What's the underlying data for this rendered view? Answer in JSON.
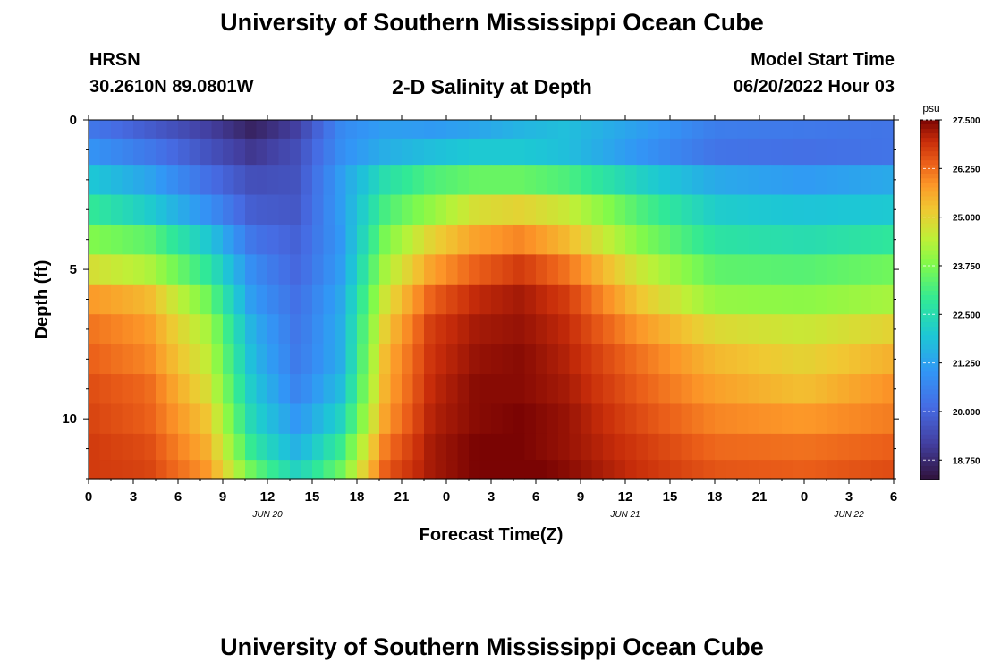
{
  "header": {
    "title": "University of Southern Mississippi Ocean Cube",
    "station_id": "HRSN",
    "coords": "30.2610N  89.0801W",
    "chart_title": "2-D Salinity at Depth",
    "start_label": "Model Start Time",
    "start_value": "06/20/2022 Hour 03"
  },
  "footer": {
    "title": "University of Southern Mississippi Ocean Cube"
  },
  "chart_data": {
    "type": "heatmap",
    "title": "2-D Salinity at Depth",
    "xlabel": "Forecast Time(Z)",
    "ylabel": "Depth (ft)",
    "x_tick_labels": [
      "0",
      "3",
      "6",
      "9",
      "12",
      "15",
      "18",
      "21",
      "0",
      "3",
      "6",
      "9",
      "12",
      "15",
      "18",
      "21",
      "0",
      "3",
      "6"
    ],
    "date_labels": [
      {
        "label": "JUN 20",
        "tick_index": 4
      },
      {
        "label": "JUN 21",
        "tick_index": 12
      },
      {
        "label": "JUN 22",
        "tick_index": 17
      }
    ],
    "x_range_hours": [
      0,
      54
    ],
    "y_tick_labels": [
      "0",
      "5",
      "10"
    ],
    "y_tick_values": [
      0,
      5,
      10
    ],
    "y_range_ft": [
      0,
      12
    ],
    "depth_layers_ft": [
      0.25,
      1.0,
      2.0,
      3.0,
      4.0,
      5.0,
      6.0,
      7.0,
      8.0,
      9.0,
      10.0,
      11.0,
      11.75
    ],
    "colorbar": {
      "unit": "psu",
      "min": 18.25,
      "max": 27.5,
      "tick_labels": [
        "27.500",
        "26.250",
        "25.000",
        "23.750",
        "22.500",
        "21.250",
        "20.000",
        "18.750"
      ],
      "tick_values": [
        27.5,
        26.25,
        25.0,
        23.75,
        22.5,
        21.25,
        20.0,
        18.75
      ]
    },
    "keyframes_hours": [
      0,
      4,
      8,
      11,
      14,
      17,
      20,
      23,
      26,
      29,
      32,
      37,
      42,
      48,
      54
    ],
    "salinity_psu": [
      [
        20.4,
        19.8,
        19.2,
        18.6,
        19.2,
        20.8,
        21.2,
        21.1,
        21.3,
        21.6,
        21.8,
        21.2,
        20.5,
        20.4,
        20.3
      ],
      [
        21.0,
        20.4,
        19.6,
        19.0,
        19.5,
        20.9,
        21.5,
        21.8,
        22.0,
        22.0,
        21.8,
        21.0,
        20.3,
        20.2,
        20.3
      ],
      [
        22.0,
        21.3,
        20.2,
        19.5,
        19.6,
        21.2,
        22.6,
        23.2,
        23.5,
        23.5,
        23.2,
        22.2,
        21.4,
        21.1,
        21.4
      ],
      [
        22.9,
        22.1,
        20.9,
        19.8,
        19.7,
        21.2,
        23.2,
        24.0,
        24.8,
        25.0,
        24.6,
        23.2,
        22.1,
        21.9,
        22.0
      ],
      [
        23.8,
        23.4,
        22.0,
        20.3,
        19.9,
        21.1,
        23.8,
        25.0,
        25.7,
        26.0,
        25.4,
        23.8,
        22.7,
        22.5,
        22.8
      ],
      [
        24.8,
        24.3,
        22.8,
        20.8,
        20.0,
        21.2,
        24.3,
        25.7,
        26.4,
        26.8,
        26.2,
        24.6,
        23.4,
        23.3,
        23.6
      ],
      [
        25.8,
        25.4,
        23.6,
        21.1,
        20.2,
        21.4,
        24.8,
        26.4,
        27.0,
        27.2,
        26.8,
        25.2,
        24.0,
        23.9,
        24.2
      ],
      [
        26.2,
        25.8,
        24.2,
        21.5,
        20.3,
        21.5,
        25.2,
        26.8,
        27.2,
        27.3,
        27.0,
        25.8,
        24.9,
        24.6,
        25.0
      ],
      [
        26.4,
        26.0,
        24.5,
        21.7,
        20.4,
        21.5,
        25.5,
        26.9,
        27.3,
        27.4,
        27.1,
        26.2,
        25.4,
        25.0,
        25.5
      ],
      [
        26.6,
        26.3,
        24.8,
        22.0,
        20.6,
        21.8,
        25.6,
        27.0,
        27.4,
        27.4,
        27.2,
        26.4,
        25.7,
        25.3,
        25.9
      ],
      [
        26.7,
        26.4,
        25.2,
        22.3,
        21.0,
        22.3,
        25.8,
        27.1,
        27.4,
        27.5,
        27.3,
        26.6,
        26.0,
        25.8,
        26.1
      ],
      [
        26.8,
        26.6,
        25.5,
        22.8,
        21.5,
        23.0,
        26.2,
        27.2,
        27.5,
        27.5,
        27.3,
        26.8,
        26.3,
        26.2,
        26.4
      ],
      [
        26.8,
        26.7,
        25.8,
        23.5,
        22.2,
        23.6,
        26.5,
        27.2,
        27.5,
        27.6,
        27.4,
        26.9,
        26.5,
        26.4,
        26.6
      ]
    ]
  }
}
